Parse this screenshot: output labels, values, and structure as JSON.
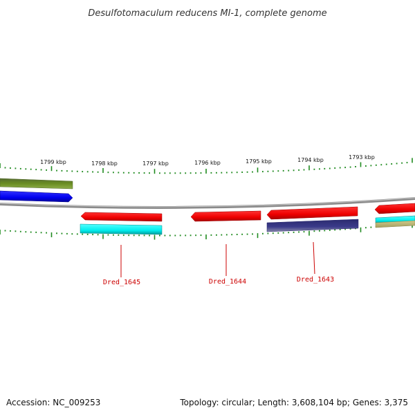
{
  "title": "Desulfotomaculum reducens MI-1, complete genome",
  "footer": {
    "accession": "Accession: NC_009253",
    "summary": "Topology: circular; Length: 3,608,104 bp; Genes: 3,375"
  },
  "scale_labels": [
    "1799 kbp",
    "1798 kbp",
    "1797 kbp",
    "1796 kbp",
    "1795 kbp",
    "1794 kbp",
    "1793 kbp"
  ],
  "gene_labels": [
    "Dred_1645",
    "Dred_1644",
    "Dred_1643"
  ],
  "colors": {
    "backbone": "#8a8a8a",
    "tick": "#1f8a1f",
    "red_gene": "#ee0000",
    "cyan_gene": "#00eeee",
    "blue_gene": "#0000ee",
    "olive_gene": "#6b8e23",
    "navy_gene": "#3b3b8a",
    "tan_gene": "#bdb76b",
    "label": "#cc0000"
  }
}
